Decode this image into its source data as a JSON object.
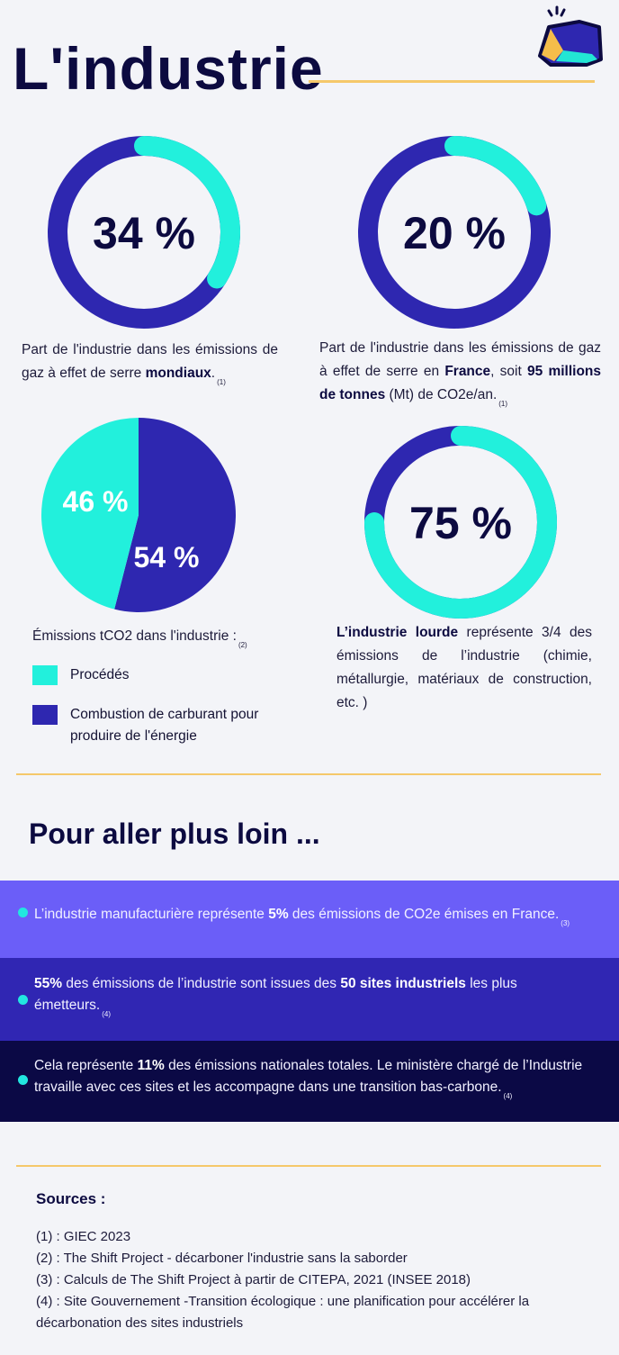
{
  "header": {
    "title": "L'industrie",
    "logo_icon": "gem-logo-icon"
  },
  "colors": {
    "dark_blue": "#2e27b0",
    "cyan": "#22f0dc",
    "navy": "#0c0a40",
    "gold": "#f5c86a",
    "band1": "#6b5ef8",
    "band2": "#3026b3",
    "band3": "#0b0945"
  },
  "chart_data": [
    {
      "type": "pie",
      "style": "donut",
      "label": "34 %",
      "values": [
        34,
        66
      ],
      "colors": [
        "#22f0dc",
        "#2e27b0"
      ]
    },
    {
      "type": "pie",
      "style": "donut",
      "label": "20 %",
      "values": [
        20,
        80
      ],
      "colors": [
        "#22f0dc",
        "#2e27b0"
      ]
    },
    {
      "type": "pie",
      "label_list": [
        "54 %",
        "46 %"
      ],
      "categories": [
        "Combustion de carburant pour produire de l'énergie",
        "Procédés"
      ],
      "values": [
        54,
        46
      ],
      "colors": [
        "#2e27b0",
        "#22f0dc"
      ]
    },
    {
      "type": "pie",
      "style": "donut",
      "label": "75 %",
      "values": [
        75,
        25
      ],
      "colors": [
        "#22f0dc",
        "#2e27b0"
      ]
    }
  ],
  "captions": {
    "world": [
      {
        "t": "Part de l'industrie dans les émissions de gaz à effet de serre "
      },
      {
        "t": "mondiaux",
        "b": true
      },
      {
        "t": "."
      },
      {
        "t": "(1)",
        "s": true
      }
    ],
    "france": [
      {
        "t": "Part de l'industrie dans les émissions de gaz à effet de serre en "
      },
      {
        "t": "France",
        "b": true
      },
      {
        "t": ", soit "
      },
      {
        "t": "95 millions de tonnes",
        "b": true
      },
      {
        "t": " (Mt) de CO2e/an."
      },
      {
        "t": "(1)",
        "s": true
      }
    ],
    "heavy": [
      {
        "t": "L’industrie lourde",
        "b": true
      },
      {
        "t": " représente 3/4 des émissions de l’industrie (chimie, métallurgie, matériaux de construction, etc. )"
      }
    ]
  },
  "legend": {
    "title": [
      {
        "t": "Émissions tCO2 dans l'industrie :"
      },
      {
        "t": "(2)",
        "s": true
      }
    ],
    "items": [
      {
        "label": "Procédés",
        "color": "#22f0dc"
      },
      {
        "label": "Combustion de carburant pour produire de l'énergie",
        "color": "#2e27b0"
      }
    ]
  },
  "more": {
    "title": "Pour aller plus loin ...",
    "facts": [
      [
        {
          "t": "L’industrie manufacturière représente "
        },
        {
          "t": "5%",
          "b": true
        },
        {
          "t": " des émissions de CO2e émises en France."
        },
        {
          "t": "(3)",
          "s": true
        }
      ],
      [
        {
          "t": "55%",
          "b": true
        },
        {
          "t": " des émissions de l’industrie sont issues des "
        },
        {
          "t": "50 sites industriels",
          "b": true
        },
        {
          "t": " les plus émetteurs."
        },
        {
          "t": "(4)",
          "s": true
        }
      ],
      [
        {
          "t": "Cela représente "
        },
        {
          "t": "11%",
          "b": true
        },
        {
          "t": " des émissions nationales totales. Le ministère chargé de l’Industrie travaille avec ces sites et les accompagne dans une transition bas-carbone."
        },
        {
          "t": "(4)",
          "s": true
        }
      ]
    ]
  },
  "sources": {
    "title": "Sources :",
    "items": [
      "(1) : GIEC 2023",
      "(2) : The Shift Project - décarboner l'industrie sans la saborder",
      "(3) : Calculs de The Shift Project à partir de CITEPA, 2021 (INSEE 2018)",
      "(4) : Site Gouvernement -Transition écologique : une planification pour accélérer la décarbonation des sites industriels"
    ]
  }
}
